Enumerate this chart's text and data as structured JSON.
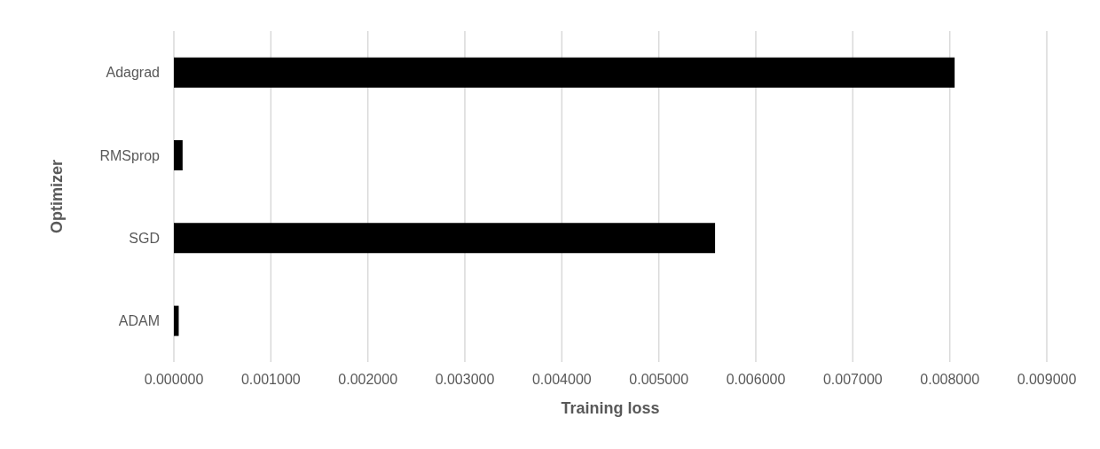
{
  "chart_data": {
    "type": "bar",
    "orientation": "horizontal",
    "xlabel": "Training loss",
    "ylabel": "Optimizer",
    "categories": [
      "Adagrad",
      "RMSprop",
      "SGD",
      "ADAM"
    ],
    "values": [
      0.00805,
      9e-05,
      0.00558,
      5e-05
    ],
    "color": "#000000",
    "xlim": [
      0,
      0.009
    ],
    "xticks": [
      {
        "value": 0,
        "label": "0.000000"
      },
      {
        "value": 0.001,
        "label": "0.001000"
      },
      {
        "value": 0.002,
        "label": "0.002000"
      },
      {
        "value": 0.003,
        "label": "0.003000"
      },
      {
        "value": 0.004,
        "label": "0.004000"
      },
      {
        "value": 0.005,
        "label": "0.005000"
      },
      {
        "value": 0.006,
        "label": "0.006000"
      },
      {
        "value": 0.007,
        "label": "0.007000"
      },
      {
        "value": 0.008,
        "label": "0.008000"
      },
      {
        "value": 0.009,
        "label": "0.009000"
      }
    ],
    "grid": "x"
  }
}
